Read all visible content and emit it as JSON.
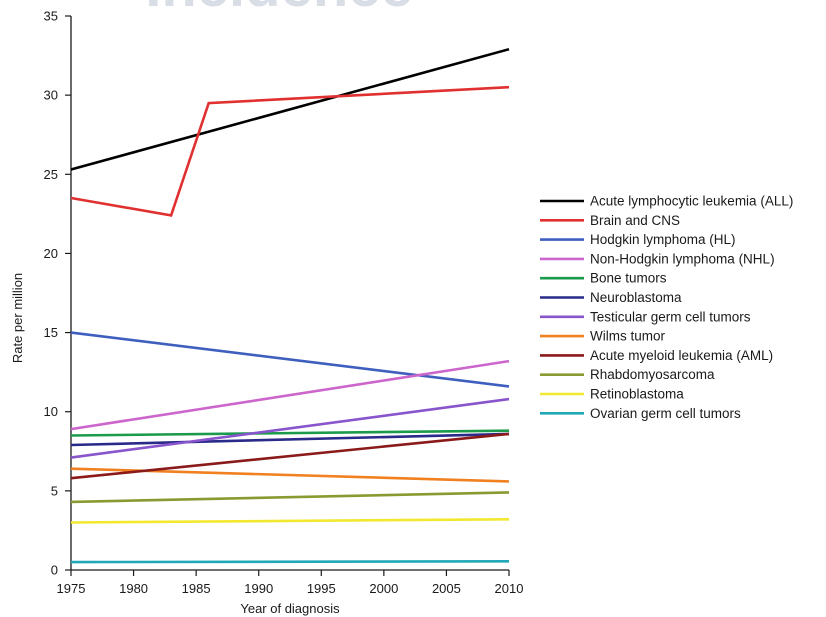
{
  "chart_data": {
    "type": "line",
    "title": "Incidence",
    "xlabel": "Year of diagnosis",
    "ylabel": "Rate per million",
    "xlim": [
      1975,
      2010
    ],
    "ylim": [
      0,
      35
    ],
    "x_ticks": [
      1975,
      1980,
      1985,
      1990,
      1995,
      2000,
      2005,
      2010
    ],
    "y_ticks": [
      0,
      5,
      10,
      15,
      20,
      25,
      30,
      35
    ],
    "grid": false,
    "legend_position": "right",
    "series": [
      {
        "name": "Acute lymphocytic leukemia (ALL)",
        "color": "#000000",
        "points": [
          [
            1975,
            25.3
          ],
          [
            2010,
            32.9
          ]
        ]
      },
      {
        "name": "Brain and CNS",
        "color": "#e03030",
        "points": [
          [
            1975,
            23.5
          ],
          [
            1983,
            22.4
          ],
          [
            1986,
            29.5
          ],
          [
            2010,
            30.5
          ]
        ]
      },
      {
        "name": "Hodgkin lymphoma (HL)",
        "color": "#3f5fbf",
        "points": [
          [
            1975,
            15.0
          ],
          [
            2010,
            11.6
          ]
        ]
      },
      {
        "name": "Non-Hodgkin lymphoma (NHL)",
        "color": "#cc66cc",
        "points": [
          [
            1975,
            8.9
          ],
          [
            2010,
            13.2
          ]
        ]
      },
      {
        "name": "Bone tumors",
        "color": "#1a9a4a",
        "points": [
          [
            1975,
            8.5
          ],
          [
            2010,
            8.8
          ]
        ]
      },
      {
        "name": "Neuroblastoma",
        "color": "#2a2a8a",
        "points": [
          [
            1975,
            7.9
          ],
          [
            2010,
            8.6
          ]
        ]
      },
      {
        "name": "Testicular germ cell tumors",
        "color": "#8855cc",
        "points": [
          [
            1975,
            7.1
          ],
          [
            2010,
            10.8
          ]
        ]
      },
      {
        "name": "Wilms tumor",
        "color": "#f08020",
        "points": [
          [
            1975,
            6.4
          ],
          [
            2010,
            5.6
          ]
        ]
      },
      {
        "name": "Acute myeloid leukemia (AML)",
        "color": "#8b1a1a",
        "points": [
          [
            1975,
            5.8
          ],
          [
            2010,
            8.6
          ]
        ]
      },
      {
        "name": "Rhabdomyosarcoma",
        "color": "#8a9a30",
        "points": [
          [
            1975,
            4.3
          ],
          [
            2010,
            4.9
          ]
        ]
      },
      {
        "name": "Retinoblastoma",
        "color": "#f2e830",
        "points": [
          [
            1975,
            3.0
          ],
          [
            2010,
            3.2
          ]
        ]
      },
      {
        "name": "Ovarian germ cell tumors",
        "color": "#20a8b8",
        "points": [
          [
            1975,
            0.5
          ],
          [
            2010,
            0.55
          ]
        ]
      }
    ]
  }
}
